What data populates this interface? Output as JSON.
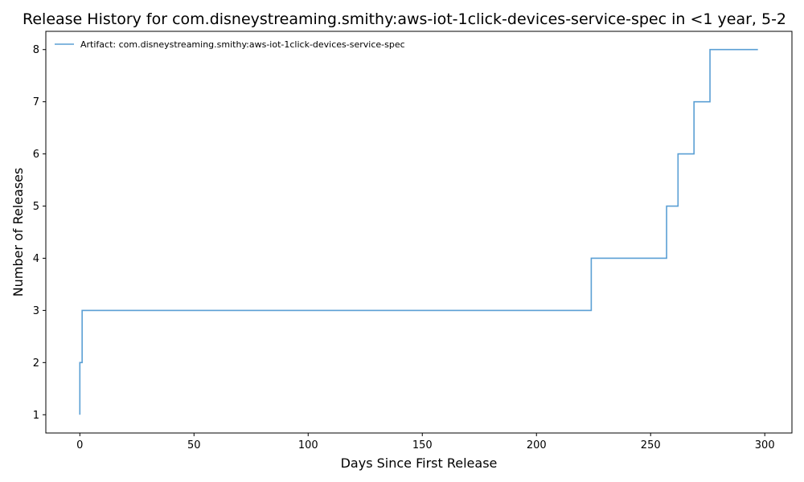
{
  "chart_data": {
    "type": "line",
    "drawstyle": "steps-post",
    "title": "Release History for com.disneystreaming.smithy:aws-iot-1click-devices-service-spec in <1 year, 5-2",
    "xlabel": "Days Since First Release",
    "ylabel": "Number of Releases",
    "xlim": [
      -14.9,
      311.9
    ],
    "ylim": [
      0.65,
      8.35
    ],
    "xticks": [
      0,
      50,
      100,
      150,
      200,
      250,
      300
    ],
    "yticks": [
      1,
      2,
      3,
      4,
      5,
      6,
      7,
      8
    ],
    "grid": false,
    "legend_position": "top-left",
    "series": [
      {
        "name": "Artifact: com.disneystreaming.smithy:aws-iot-1click-devices-service-spec",
        "color": "#5a9fd4",
        "x": [
          0,
          0,
          1,
          224,
          257,
          262,
          269,
          276,
          297
        ],
        "y": [
          1,
          2,
          3,
          4,
          5,
          6,
          7,
          8,
          8
        ]
      }
    ]
  }
}
